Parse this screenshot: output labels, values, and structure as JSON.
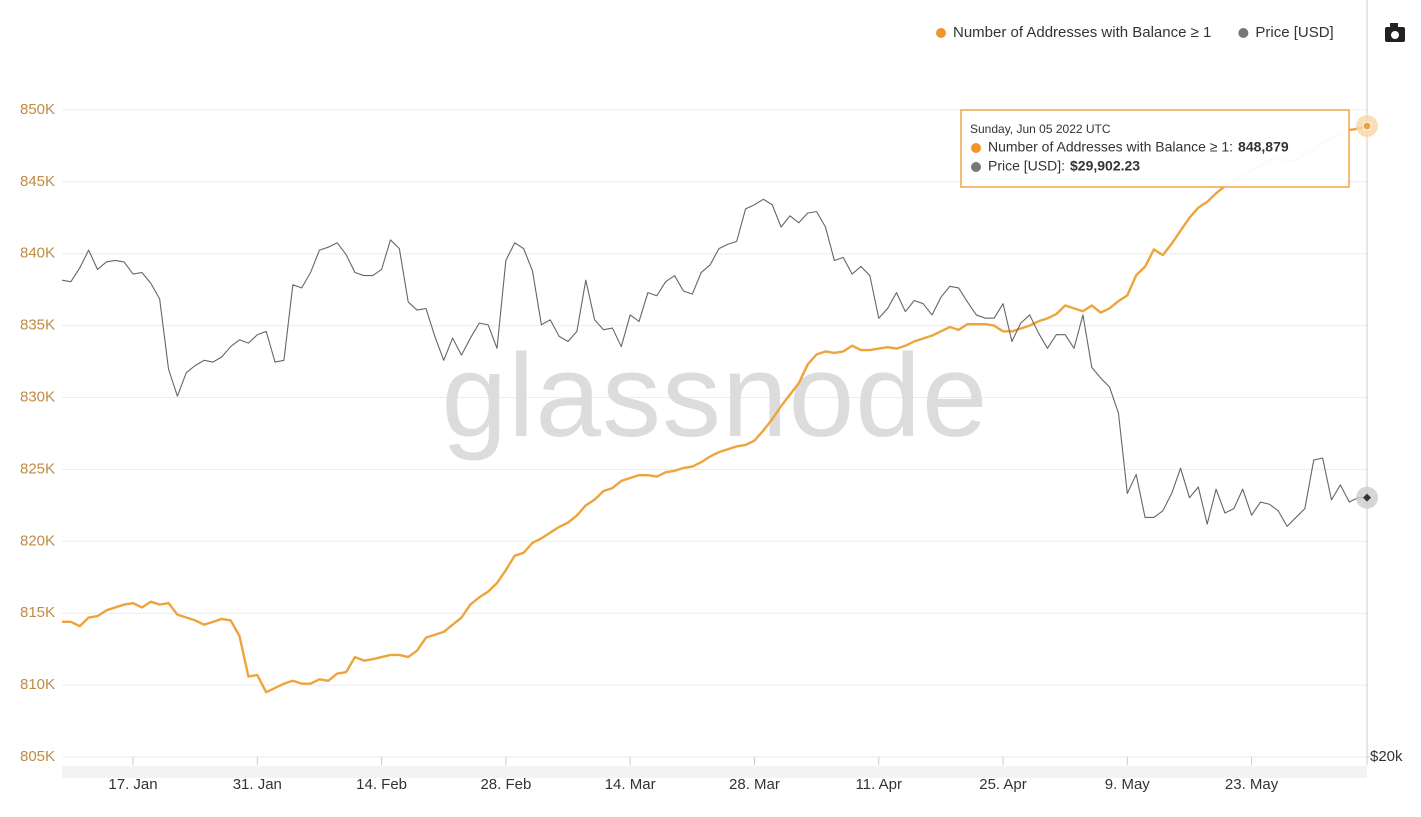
{
  "watermark": "glassnode",
  "tooltip": {
    "date": "Sunday, Jun 05 2022 UTC",
    "rows": [
      {
        "label": "Number of Addresses with Balance ≥ 1:",
        "value": "848,879"
      },
      {
        "label": "Price [USD]:",
        "value": "$29,902.23"
      }
    ]
  },
  "chart_data": {
    "type": "line",
    "categories": [
      null,
      null,
      null,
      null,
      null,
      null,
      null,
      null,
      "17. Jan",
      null,
      null,
      null,
      null,
      null,
      null,
      null,
      null,
      null,
      null,
      null,
      null,
      null,
      "31. Jan",
      null,
      null,
      null,
      null,
      null,
      null,
      null,
      null,
      null,
      null,
      null,
      null,
      null,
      "14. Feb",
      null,
      null,
      null,
      null,
      null,
      null,
      null,
      null,
      null,
      null,
      null,
      null,
      null,
      "28. Feb",
      null,
      null,
      null,
      null,
      null,
      null,
      null,
      null,
      null,
      null,
      null,
      null,
      null,
      "14. Mar",
      null,
      null,
      null,
      null,
      null,
      null,
      null,
      null,
      null,
      null,
      null,
      null,
      null,
      "28. Mar",
      null,
      null,
      null,
      null,
      null,
      null,
      null,
      null,
      null,
      null,
      null,
      null,
      null,
      "11. Apr",
      null,
      null,
      null,
      null,
      null,
      null,
      null,
      null,
      null,
      null,
      null,
      null,
      null,
      "25. Apr",
      null,
      null,
      null,
      null,
      null,
      null,
      null,
      null,
      null,
      null,
      null,
      null,
      null,
      "9. May",
      null,
      null,
      null,
      null,
      null,
      null,
      null,
      null,
      null,
      null,
      null,
      null,
      null,
      "23. May",
      null,
      null,
      null,
      null,
      null,
      null,
      null,
      null,
      null,
      null,
      null,
      null,
      null
    ],
    "series": [
      {
        "name": "Number of Addresses with Balance ≥ 1",
        "color": "#eea43c",
        "axis": "y",
        "values": [
          814400,
          814400,
          814100,
          814700,
          814800,
          815200,
          815400,
          815600,
          815700,
          815400,
          815800,
          815600,
          815700,
          814900,
          814700,
          814500,
          814200,
          814400,
          814600,
          814500,
          813400,
          810600,
          810700,
          809500,
          809800,
          810100,
          810300,
          810100,
          810100,
          810400,
          810300,
          810800,
          810900,
          811950,
          811700,
          811800,
          811950,
          812100,
          812100,
          811950,
          812400,
          813300,
          813500,
          813700,
          814200,
          814700,
          815600,
          816100,
          816500,
          817100,
          818000,
          819000,
          819200,
          819900,
          820200,
          820600,
          821000,
          821300,
          821800,
          822500,
          822900,
          823500,
          823700,
          824200,
          824400,
          824600,
          824600,
          824500,
          824800,
          824900,
          825100,
          825200,
          825500,
          825900,
          826200,
          826400,
          826600,
          826700,
          827000,
          827700,
          828500,
          829400,
          830200,
          831000,
          832300,
          833000,
          833200,
          833100,
          833200,
          833600,
          833300,
          833300,
          833400,
          833500,
          833400,
          833600,
          833900,
          834100,
          834300,
          834600,
          834900,
          834700,
          835100,
          835100,
          835100,
          835000,
          834600,
          834600,
          834800,
          835000,
          835300,
          835500,
          835800,
          836400,
          836200,
          836000,
          836400,
          835900,
          836200,
          836700,
          837100,
          838500,
          839100,
          840300,
          839900,
          840700,
          841600,
          842500,
          843200,
          843600,
          844200,
          844700,
          845100,
          845400,
          845800,
          846100,
          846500,
          846700,
          846400,
          846500,
          847000,
          847300,
          847700,
          848000,
          848300,
          848600,
          848700,
          848879
        ]
      },
      {
        "name": "Price [USD]",
        "color": "#666666",
        "axis": "y2",
        "values": [
          41900,
          41800,
          42700,
          43900,
          42600,
          43100,
          43200,
          43100,
          42300,
          42400,
          41700,
          40700,
          36500,
          35000,
          36300,
          36700,
          37000,
          36900,
          37200,
          37800,
          38200,
          38000,
          38500,
          38700,
          36900,
          37000,
          41600,
          41400,
          42400,
          43900,
          44100,
          44400,
          43600,
          42400,
          42200,
          42200,
          42600,
          44600,
          44000,
          40500,
          40000,
          40100,
          38400,
          37000,
          38300,
          37300,
          38300,
          39200,
          39100,
          37700,
          43200,
          44400,
          44000,
          42500,
          39100,
          39400,
          38400,
          38100,
          38700,
          41900,
          39400,
          38800,
          38900,
          37800,
          39700,
          39300,
          41100,
          40900,
          41800,
          42200,
          41200,
          41000,
          42400,
          42900,
          44000,
          44300,
          44500,
          46800,
          47100,
          47500,
          47100,
          45500,
          46300,
          45800,
          46500,
          46600,
          45500,
          43200,
          43400,
          42300,
          42800,
          42200,
          39500,
          40100,
          41100,
          39900,
          40600,
          40400,
          39700,
          40800,
          41500,
          41400,
          40500,
          39700,
          39500,
          39500,
          40400,
          38100,
          39200,
          39700,
          38600,
          37700,
          38500,
          38500,
          37700,
          39700,
          36600,
          36000,
          35500,
          34100,
          30100,
          31000,
          29000,
          29000,
          29300,
          30100,
          31300,
          29900,
          30400,
          28700,
          30300,
          29200,
          29400,
          30300,
          29100,
          29700,
          29600,
          29300,
          28600,
          29000,
          29400,
          31700,
          31800,
          29800,
          30500,
          29700,
          29900,
          29902.23
        ]
      }
    ],
    "ylim": [
      805000,
      855000
    ],
    "yticks": [
      {
        "value": 805000,
        "label": "805K"
      },
      {
        "value": 810000,
        "label": "810K"
      },
      {
        "value": 815000,
        "label": "815K"
      },
      {
        "value": 820000,
        "label": "820K"
      },
      {
        "value": 825000,
        "label": "825K"
      },
      {
        "value": 830000,
        "label": "830K"
      },
      {
        "value": 835000,
        "label": "835K"
      },
      {
        "value": 840000,
        "label": "840K"
      },
      {
        "value": 845000,
        "label": "845K"
      },
      {
        "value": 850000,
        "label": "850K"
      }
    ],
    "y2lim": [
      20000,
      61000
    ],
    "y2log": true,
    "y2ticks": [
      {
        "value": 20000,
        "label": "$20k"
      }
    ],
    "grid": true,
    "legend": "top-right"
  }
}
